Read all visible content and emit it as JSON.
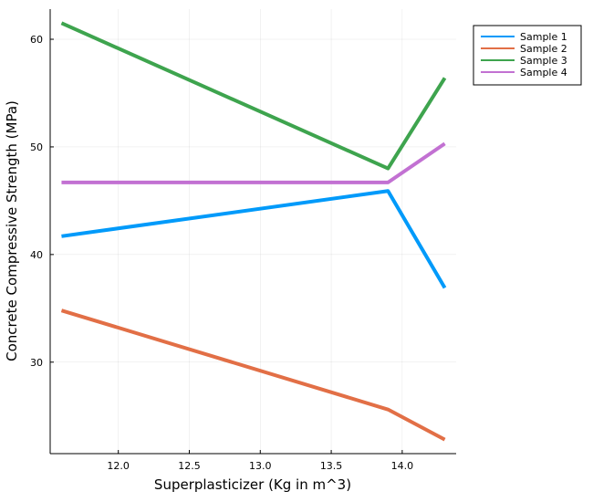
{
  "chart_data": {
    "type": "line",
    "title": "",
    "xlabel": "Superplasticizer (Kg in m^3)",
    "ylabel": "Concrete Compressive Strength (MPa)",
    "xlim": [
      11.52,
      14.38
    ],
    "ylim": [
      21.5,
      62.8
    ],
    "x_ticks": [
      12.0,
      12.5,
      13.0,
      13.5,
      14.0
    ],
    "x_tick_labels": [
      "12.0",
      "12.5",
      "13.0",
      "13.5",
      "14.0"
    ],
    "y_ticks": [
      30,
      40,
      50,
      60
    ],
    "y_tick_labels": [
      "30",
      "40",
      "50",
      "60"
    ],
    "grid": true,
    "legend_position": "top-right",
    "x": [
      11.6,
      13.9,
      14.3
    ],
    "series": [
      {
        "name": "Sample 1",
        "color": "#009AFA",
        "values": [
          41.7,
          45.9,
          36.9
        ]
      },
      {
        "name": "Sample 2",
        "color": "#E26F46",
        "values": [
          34.8,
          25.6,
          22.8
        ]
      },
      {
        "name": "Sample 3",
        "color": "#3EA44E",
        "values": [
          61.5,
          48.0,
          56.4
        ]
      },
      {
        "name": "Sample 4",
        "color": "#C271D2",
        "values": [
          46.7,
          46.7,
          50.3
        ]
      }
    ]
  }
}
